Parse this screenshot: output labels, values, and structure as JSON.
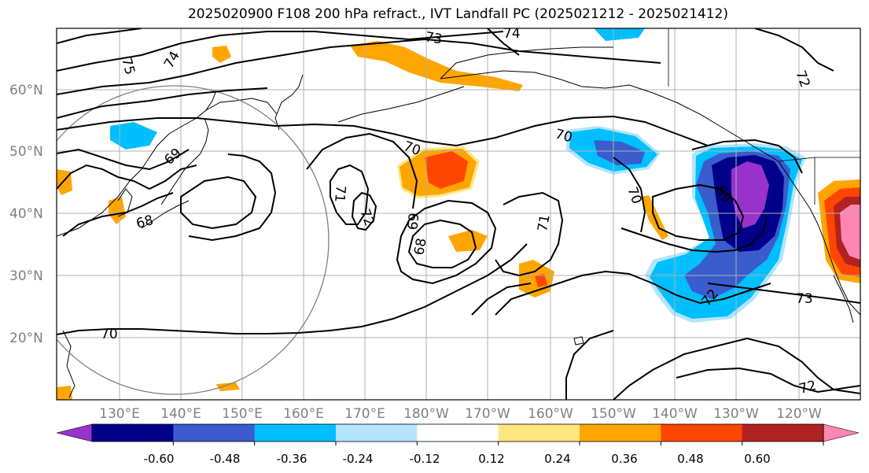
{
  "title": "2025020900 F108 200 hPa refract., IVT Landfall PC (2025021212 - 2025021412)",
  "map": {
    "lat_labels": [
      "60°N",
      "50°N",
      "40°N",
      "30°N",
      "20°N"
    ],
    "lon_labels": [
      "130°E",
      "140°E",
      "150°E",
      "160°E",
      "170°E",
      "180°W",
      "170°W",
      "160°W",
      "150°W",
      "140°W",
      "130°W",
      "120°W"
    ],
    "contour_labels": [
      "75",
      "74",
      "73",
      "74",
      "72",
      "70",
      "69",
      "68",
      "71",
      "72",
      "69",
      "68",
      "70",
      "71",
      "70",
      "69",
      "73",
      "72",
      "72",
      "70"
    ],
    "colors": {
      "purple": "#9932cc",
      "navy": "#00008b",
      "royal_blue": "#3a5ccc",
      "deep_sky_blue": "#00bfff",
      "light_blue": "#b3e5fc",
      "light_yellow": "#ffe680",
      "orange": "#ffa500",
      "orange_red": "#ff4500",
      "firebrick": "#b22222",
      "pink": "#ff85b3"
    }
  },
  "colorbar": {
    "ticks": [
      "-0.60",
      "-0.48",
      "-0.36",
      "-0.24",
      "-0.12",
      "0.12",
      "0.24",
      "0.36",
      "0.48",
      "0.60"
    ],
    "bins": [
      "#9932cc",
      "#00008b",
      "#3a5ccc",
      "#00bfff",
      "#b3e5fc",
      "#ffffff",
      "#ffe680",
      "#ffa500",
      "#ff4500",
      "#b22222",
      "#ff85b3"
    ]
  }
}
